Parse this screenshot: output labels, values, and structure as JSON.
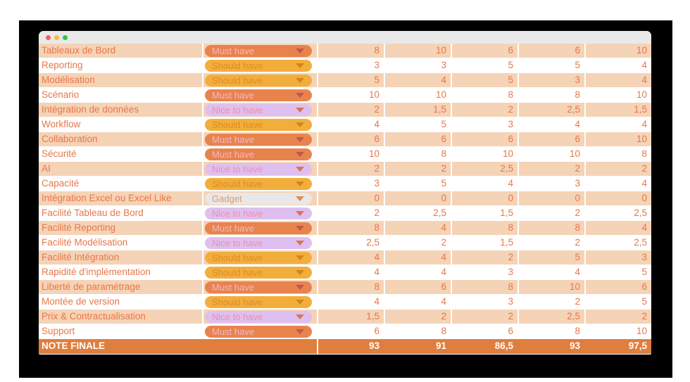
{
  "colors": {
    "backdrop": "#000000",
    "titlebar_bg": "#EAE9E9",
    "row_stripe": "#F5D3B6",
    "text_orange": "#E8774A",
    "footer_bg": "#E07E3E",
    "traffic_red": "#F4605A",
    "traffic_yellow": "#F8BD34",
    "traffic_green": "#37C540"
  },
  "dropdown_options": {
    "must": {
      "label": "Must have",
      "bg": "#E8834E",
      "text": "#F4B7C3",
      "chevron": "#BE584C"
    },
    "should": {
      "label": "Should have",
      "bg": "#F2AE3B",
      "text": "#DF8A28",
      "chevron": "#D5831E"
    },
    "nice": {
      "label": "Nice to have",
      "bg": "#DEBFEF",
      "text": "#EE8FA8",
      "chevron": "#D5764F"
    },
    "gadget": {
      "label": "Gadget",
      "bg": "#E9E7E7",
      "text": "#E59A63",
      "chevron": "#DF8B50"
    }
  },
  "rows": [
    {
      "label": "Tableaux de Bord",
      "priority": "must",
      "scores": [
        "8",
        "10",
        "6",
        "6",
        "10"
      ]
    },
    {
      "label": "Reporting",
      "priority": "should",
      "scores": [
        "3",
        "3",
        "5",
        "5",
        "4"
      ]
    },
    {
      "label": "Modélisation",
      "priority": "should",
      "scores": [
        "5",
        "4",
        "5",
        "3",
        "4"
      ]
    },
    {
      "label": "Scénario",
      "priority": "must",
      "scores": [
        "10",
        "10",
        "8",
        "8",
        "10"
      ]
    },
    {
      "label": "Intégration de données",
      "priority": "nice",
      "scores": [
        "2",
        "1,5",
        "2",
        "2,5",
        "1,5"
      ]
    },
    {
      "label": "Workflow",
      "priority": "should",
      "scores": [
        "4",
        "5",
        "3",
        "4",
        "4"
      ]
    },
    {
      "label": "Collaboration",
      "priority": "must",
      "scores": [
        "6",
        "6",
        "6",
        "6",
        "10"
      ]
    },
    {
      "label": "Sécurité",
      "priority": "must",
      "scores": [
        "10",
        "8",
        "10",
        "10",
        "8"
      ]
    },
    {
      "label": "AI",
      "priority": "nice",
      "scores": [
        "2",
        "2",
        "2,5",
        "2",
        "2"
      ]
    },
    {
      "label": "Capacité",
      "priority": "should",
      "scores": [
        "3",
        "5",
        "4",
        "3",
        "4"
      ]
    },
    {
      "label": "Intégration Excel ou Excel Like",
      "priority": "gadget",
      "scores": [
        "0",
        "0",
        "0",
        "0",
        "0"
      ]
    },
    {
      "label": "Facilité Tableau de Bord",
      "priority": "nice",
      "scores": [
        "2",
        "2,5",
        "1,5",
        "2",
        "2,5"
      ]
    },
    {
      "label": "Facilité Reporting",
      "priority": "must",
      "scores": [
        "8",
        "4",
        "8",
        "8",
        "4"
      ]
    },
    {
      "label": "Facilité Modélisation",
      "priority": "nice",
      "scores": [
        "2,5",
        "2",
        "1,5",
        "2",
        "2,5"
      ]
    },
    {
      "label": "Facilité Intégration",
      "priority": "should",
      "scores": [
        "4",
        "4",
        "2",
        "5",
        "3"
      ]
    },
    {
      "label": "Rapidité d'implémentation",
      "priority": "should",
      "scores": [
        "4",
        "4",
        "3",
        "4",
        "5"
      ]
    },
    {
      "label": "Liberté de paramétrage",
      "priority": "must",
      "scores": [
        "8",
        "6",
        "8",
        "10",
        "6"
      ]
    },
    {
      "label": "Montée de version",
      "priority": "should",
      "scores": [
        "4",
        "4",
        "3",
        "2",
        "5"
      ]
    },
    {
      "label": "Prix & Contractualisation",
      "priority": "nice",
      "scores": [
        "1,5",
        "2",
        "2",
        "2,5",
        "2"
      ]
    },
    {
      "label": "Support",
      "priority": "must",
      "scores": [
        "6",
        "8",
        "6",
        "8",
        "10"
      ]
    }
  ],
  "footer": {
    "label": "NOTE FINALE",
    "scores": [
      "93",
      "91",
      "86,5",
      "93",
      "97,5"
    ]
  }
}
